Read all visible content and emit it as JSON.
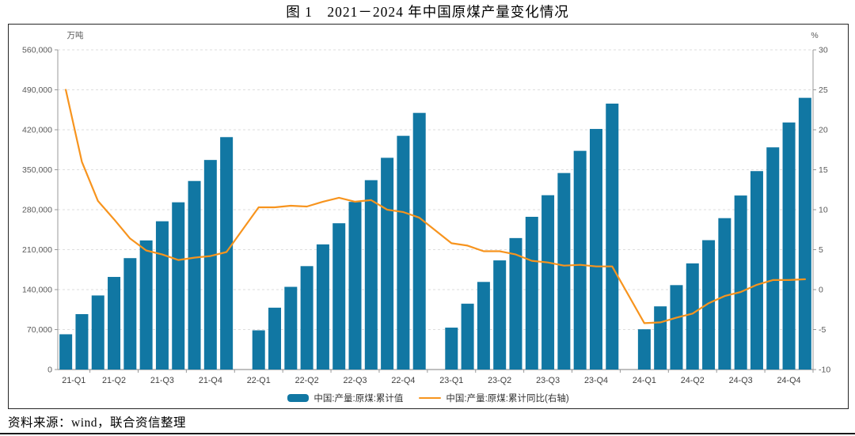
{
  "page": {
    "title": "图 1　2021－2024 年中国原煤产量变化情况",
    "source_note": "资料来源：wind，联合资信整理"
  },
  "colors": {
    "bar": "#1177A3",
    "line": "#F7941E",
    "grid": "#dedede",
    "axis": "#999999",
    "tick_text": "#595959",
    "x_text": "#404040",
    "border": "#262626"
  },
  "chart_data": {
    "type": "bar",
    "subtype": "bar+line combo, monthly cumulative series (Feb–Dec each year, January gap)",
    "title": "图 1　2021－2024 年中国原煤产量变化情况",
    "left_axis": {
      "unit": "万吨",
      "min": 0,
      "max": 560000,
      "step": 70000,
      "tick_labels": [
        "0",
        "70,000",
        "140,000",
        "210,000",
        "280,000",
        "350,000",
        "420,000",
        "490,000",
        "560,000"
      ]
    },
    "right_axis": {
      "unit": "%",
      "min": -10,
      "max": 30,
      "step": 5,
      "tick_labels": [
        "-10",
        "-5",
        "0",
        "5",
        "10",
        "15",
        "20",
        "25",
        "30"
      ]
    },
    "x_quarter_labels": [
      "21-Q1",
      "21-Q2",
      "21-Q3",
      "21-Q4",
      "22-Q1",
      "22-Q2",
      "22-Q3",
      "22-Q4",
      "23-Q1",
      "23-Q2",
      "23-Q3",
      "23-Q4",
      "24-Q1",
      "24-Q2",
      "24-Q3",
      "24-Q4"
    ],
    "grid": "horizontal dashed",
    "legend_position": "bottom center",
    "legend": [
      {
        "label": "中国:产量:原煤:累计值",
        "type": "bar",
        "color": "#1177A3",
        "axis": "left"
      },
      {
        "label": "中国:产量:原煤:累计同比(右轴)",
        "type": "line",
        "color": "#F7941E",
        "axis": "right"
      }
    ],
    "years": [
      {
        "year": "2021",
        "bars": [
          61760,
          97056,
          129739,
          162233,
          195148,
          226169,
          259724,
          292944,
          330282,
          367118,
          407136
        ],
        "line": [
          25.0,
          16.0,
          11.1,
          8.8,
          6.4,
          4.9,
          4.4,
          3.7,
          4.0,
          4.2,
          4.7
        ]
      },
      {
        "year": "2022",
        "bars": [
          68660,
          108342,
          144839,
          181136,
          219231,
          256244,
          293641,
          331717,
          370915,
          409401,
          449558
        ],
        "line": [
          10.3,
          10.3,
          10.5,
          10.4,
          11.0,
          11.5,
          11.0,
          11.2,
          10.0,
          9.7,
          9.0
        ]
      },
      {
        "year": "2023",
        "bars": [
          73423,
          115355,
          153462,
          191192,
          230299,
          267542,
          305370,
          344245,
          383089,
          421450,
          465843
        ],
        "line": [
          5.8,
          5.5,
          4.8,
          4.8,
          4.4,
          3.6,
          3.4,
          3.0,
          3.1,
          2.9,
          2.9
        ]
      },
      {
        "year": "2024",
        "bars": [
          70527,
          110656,
          147868,
          185963,
          226619,
          265200,
          304835,
          347600,
          389200,
          432800,
          475962
        ],
        "line": [
          -4.2,
          -4.1,
          -3.5,
          -3.0,
          -1.7,
          -0.8,
          -0.3,
          0.6,
          1.2,
          1.2,
          1.3
        ]
      }
    ]
  }
}
